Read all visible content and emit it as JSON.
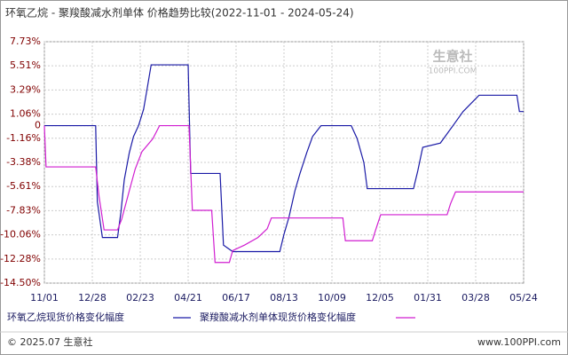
{
  "chart_data": {
    "type": "line",
    "title": "环氧乙烷 - 聚羧酸减水剂单体  价格趋势比较(2022-11-01 - 2024-05-24)",
    "xlim": [
      "2022-11-01",
      "2024-05-24"
    ],
    "xticks": [
      {
        "value": "2022-11-01",
        "label": "11/01"
      },
      {
        "value": "2022-12-28",
        "label": "12/28"
      },
      {
        "value": "2023-02-23",
        "label": "02/23"
      },
      {
        "value": "2023-04-21",
        "label": "04/21"
      },
      {
        "value": "2023-06-17",
        "label": "06/17"
      },
      {
        "value": "2023-08-13",
        "label": "08/13"
      },
      {
        "value": "2023-10-09",
        "label": "10/09"
      },
      {
        "value": "2023-12-05",
        "label": "12/05"
      },
      {
        "value": "2024-01-31",
        "label": "01/31"
      },
      {
        "value": "2024-03-28",
        "label": "03/28"
      },
      {
        "value": "2024-05-24",
        "label": "05/24"
      }
    ],
    "ylim": [
      -14.5,
      7.73
    ],
    "yticks": [
      {
        "value": 7.73,
        "label": "7.73%"
      },
      {
        "value": 5.51,
        "label": "5.51%"
      },
      {
        "value": 3.29,
        "label": "3.29%"
      },
      {
        "value": 1.06,
        "label": "1.06%"
      },
      0,
      {
        "value": -1.16,
        "label": "-1.16%"
      },
      {
        "value": -3.38,
        "label": "-3.38%"
      },
      {
        "value": -5.61,
        "label": "-5.61%"
      },
      {
        "value": -7.83,
        "label": "-7.83%"
      },
      {
        "value": -10.06,
        "label": "-10.06%"
      },
      {
        "value": -12.28,
        "label": "-12.28%"
      },
      {
        "value": -14.5,
        "label": "-14.50%"
      }
    ],
    "grid": true,
    "series": [
      {
        "name": "环氧乙烷现货价格变化幅度",
        "color": "#1a1aa6",
        "x": [
          "2022-11-01",
          "2023-01-01",
          "2023-01-03",
          "2023-01-09",
          "2023-01-27",
          "2023-01-31",
          "2023-02-04",
          "2023-02-10",
          "2023-02-15",
          "2023-02-21",
          "2023-02-27",
          "2023-03-03",
          "2023-03-08",
          "2023-04-21",
          "2023-04-24",
          "2023-05-29",
          "2023-06-02",
          "2023-06-13",
          "2023-08-08",
          "2023-08-13",
          "2023-08-19",
          "2023-08-26",
          "2023-09-01",
          "2023-09-09",
          "2023-09-16",
          "2023-09-26",
          "2023-11-01",
          "2023-11-08",
          "2023-11-16",
          "2023-11-20",
          "2024-01-14",
          "2024-01-19",
          "2024-01-25",
          "2024-02-15",
          "2024-03-01",
          "2024-03-13",
          "2024-04-01",
          "2024-05-16",
          "2024-05-19",
          "2024-05-24"
        ],
        "values": [
          0,
          0,
          -7.0,
          -10.3,
          -10.3,
          -8.0,
          -5.0,
          -2.5,
          -1.0,
          0,
          1.5,
          3.3,
          5.6,
          5.6,
          -4.4,
          -4.4,
          -11.0,
          -11.6,
          -11.6,
          -10.0,
          -8.4,
          -6.0,
          -4.4,
          -2.5,
          -1.0,
          0,
          0,
          -1.2,
          -3.4,
          -5.8,
          -5.8,
          -4.2,
          -2.0,
          -1.6,
          0,
          1.3,
          2.8,
          2.8,
          1.3,
          1.3
        ]
      },
      {
        "name": "聚羧酸减水剂单体现货价格变化幅度",
        "color": "#d11fd1",
        "x": [
          "2022-11-01",
          "2022-11-03",
          "2023-01-01",
          "2023-01-05",
          "2023-01-11",
          "2023-01-27",
          "2023-02-01",
          "2023-02-10",
          "2023-02-17",
          "2023-02-25",
          "2023-03-10",
          "2023-03-18",
          "2023-04-22",
          "2023-04-26",
          "2023-05-19",
          "2023-05-23",
          "2023-06-09",
          "2023-06-13",
          "2023-06-27",
          "2023-07-13",
          "2023-07-24",
          "2023-07-29",
          "2023-10-22",
          "2023-10-25",
          "2023-11-26",
          "2023-11-30",
          "2023-12-06",
          "2024-02-23",
          "2024-02-27",
          "2024-03-04",
          "2024-05-24"
        ],
        "values": [
          0,
          -3.8,
          -3.8,
          -6.5,
          -9.6,
          -9.6,
          -8.6,
          -6.0,
          -4.0,
          -2.4,
          -1.2,
          0,
          0,
          -7.8,
          -7.8,
          -12.6,
          -12.6,
          -11.5,
          -11.0,
          -10.3,
          -9.5,
          -8.5,
          -8.5,
          -10.6,
          -10.6,
          -9.6,
          -8.2,
          -8.2,
          -7.2,
          -6.1,
          -6.1
        ]
      }
    ]
  },
  "watermark": {
    "name": "生意社",
    "url": "100PPI.COM"
  },
  "footer": {
    "left": "© 2025.07 生意社",
    "right": "www.100PPI.com"
  }
}
